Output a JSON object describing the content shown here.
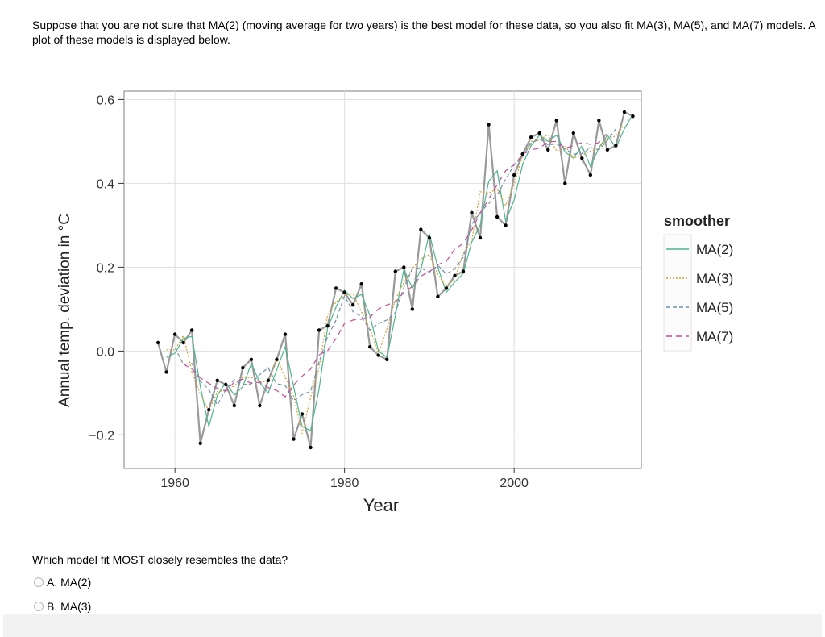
{
  "intro_text": "Suppose that you are not sure that MA(2) (moving average  for two years) is the best model for these data, so you  also fit MA(3), MA(5), and MA(7) models. A plot of these models is displayed below.",
  "question": {
    "prompt": "Which model fit MOST closely resembles the data?",
    "options": [
      {
        "label": "A. MA(2)",
        "selected": false
      },
      {
        "label": "B. MA(3)",
        "selected": false
      }
    ]
  },
  "chart_data": {
    "type": "line",
    "title": "",
    "xlabel": "Year",
    "ylabel": "Annual temp. deviation in °C",
    "xlim": [
      1954,
      2015
    ],
    "ylim": [
      -0.28,
      0.62
    ],
    "xticks": [
      {
        "value": 1960,
        "label": "1960"
      },
      {
        "value": 1980,
        "label": "1980"
      },
      {
        "value": 2000,
        "label": "2000"
      }
    ],
    "yticks": [
      {
        "value": 0.6,
        "label": "0.6"
      },
      {
        "value": 0.4,
        "label": "0.4"
      },
      {
        "value": 0.2,
        "label": "0.2"
      },
      {
        "value": 0.0,
        "label": "0.0"
      },
      {
        "value": -0.2,
        "label": "−0.2"
      }
    ],
    "grid": true,
    "legend_position": "right",
    "legend_title": "smoother",
    "x": [
      1958,
      1959,
      1960,
      1961,
      1962,
      1963,
      1964,
      1965,
      1966,
      1967,
      1968,
      1969,
      1970,
      1971,
      1972,
      1973,
      1974,
      1975,
      1976,
      1977,
      1978,
      1979,
      1980,
      1981,
      1982,
      1983,
      1984,
      1985,
      1986,
      1987,
      1988,
      1989,
      1990,
      1991,
      1992,
      1993,
      1994,
      1995,
      1996,
      1997,
      1998,
      1999,
      2000,
      2001,
      2002,
      2003,
      2004,
      2005,
      2006,
      2007,
      2008,
      2009,
      2010,
      2011,
      2012,
      2013,
      2014
    ],
    "data_series": {
      "name": "Data",
      "color": "#999999",
      "values": [
        0.02,
        -0.05,
        0.04,
        0.02,
        0.05,
        -0.22,
        -0.14,
        -0.07,
        -0.08,
        -0.13,
        -0.04,
        -0.02,
        -0.13,
        -0.07,
        -0.02,
        0.04,
        -0.21,
        -0.15,
        -0.23,
        0.05,
        0.06,
        0.15,
        0.14,
        0.11,
        0.16,
        0.01,
        -0.01,
        -0.02,
        0.19,
        0.2,
        0.1,
        0.29,
        0.27,
        0.13,
        0.15,
        0.18,
        0.19,
        0.33,
        0.27,
        0.54,
        0.32,
        0.3,
        0.42,
        0.47,
        0.51,
        0.52,
        0.48,
        0.55,
        0.4,
        0.52,
        0.46,
        0.42,
        0.55,
        0.48,
        0.49,
        0.57,
        0.56
      ]
    },
    "series": [
      {
        "name": "MA(2)",
        "color": "#4fb58a",
        "dash": "solid",
        "values": [
          null,
          -0.015,
          -0.005,
          0.03,
          0.035,
          -0.085,
          -0.18,
          -0.105,
          -0.075,
          -0.105,
          -0.085,
          -0.03,
          -0.075,
          -0.1,
          -0.045,
          0.01,
          -0.085,
          -0.18,
          -0.19,
          -0.09,
          0.055,
          0.105,
          0.145,
          0.125,
          0.135,
          0.085,
          0.0,
          -0.015,
          0.085,
          0.195,
          0.15,
          0.195,
          0.28,
          0.2,
          0.14,
          0.165,
          0.185,
          0.26,
          0.3,
          0.405,
          0.43,
          0.31,
          0.36,
          0.445,
          0.49,
          0.515,
          0.5,
          0.515,
          0.475,
          0.46,
          0.49,
          0.44,
          0.485,
          0.515,
          0.485,
          0.53,
          0.565
        ]
      },
      {
        "name": "MA(3)",
        "color": "#d2a13e",
        "dash": "2,2",
        "values": [
          null,
          0.003,
          0.003,
          0.037,
          -0.05,
          -0.103,
          -0.143,
          -0.097,
          -0.093,
          -0.083,
          -0.063,
          -0.063,
          -0.073,
          -0.073,
          -0.017,
          -0.063,
          -0.107,
          -0.197,
          -0.11,
          -0.04,
          0.087,
          0.117,
          0.133,
          0.137,
          0.093,
          0.053,
          -0.007,
          0.053,
          0.123,
          0.163,
          0.197,
          0.22,
          0.23,
          0.183,
          0.153,
          0.173,
          0.233,
          0.263,
          0.38,
          0.377,
          0.387,
          0.347,
          0.397,
          0.467,
          0.5,
          0.503,
          0.517,
          0.477,
          0.49,
          0.46,
          0.467,
          0.477,
          0.483,
          0.507,
          0.513,
          0.54,
          null
        ]
      },
      {
        "name": "MA(5)",
        "color": "#6f8fa8",
        "dash": "5,3",
        "values": [
          null,
          null,
          0.008,
          -0.032,
          -0.03,
          -0.072,
          -0.092,
          -0.128,
          -0.092,
          -0.068,
          -0.08,
          -0.078,
          -0.056,
          -0.04,
          -0.078,
          -0.082,
          -0.118,
          -0.104,
          -0.096,
          -0.026,
          0.034,
          0.074,
          0.132,
          0.094,
          0.082,
          0.05,
          0.066,
          0.074,
          0.092,
          0.152,
          0.196,
          0.198,
          0.188,
          0.204,
          0.184,
          0.196,
          0.224,
          0.302,
          0.33,
          0.352,
          0.372,
          0.41,
          0.444,
          0.464,
          0.496,
          0.506,
          0.492,
          0.494,
          0.482,
          0.47,
          0.47,
          0.486,
          0.48,
          0.502,
          0.53,
          null,
          null
        ]
      },
      {
        "name": "MA(7)",
        "color": "#c0509a",
        "dash": "7,5",
        "values": [
          null,
          null,
          null,
          -0.031,
          -0.043,
          -0.064,
          -0.077,
          -0.089,
          -0.096,
          -0.074,
          -0.067,
          -0.077,
          -0.074,
          -0.087,
          -0.094,
          -0.109,
          -0.081,
          -0.06,
          -0.043,
          -0.009,
          0.001,
          0.03,
          0.066,
          0.074,
          0.076,
          0.081,
          0.1,
          0.11,
          0.117,
          0.14,
          0.154,
          0.179,
          0.189,
          0.206,
          0.214,
          0.243,
          0.257,
          0.289,
          0.329,
          0.363,
          0.397,
          0.43,
          0.444,
          0.469,
          0.48,
          0.484,
          0.499,
          0.5,
          0.484,
          0.49,
          0.497,
          0.493,
          0.497,
          0.52,
          null,
          null,
          null
        ]
      }
    ]
  }
}
